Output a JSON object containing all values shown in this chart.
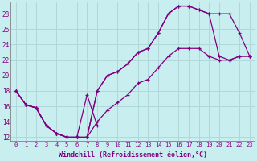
{
  "background_color": "#c8eef0",
  "grid_color": "#b0d8da",
  "line_color": "#800080",
  "marker": "+",
  "xlabel": "Windchill (Refroidissement éolien,°C)",
  "ylim": [
    11.5,
    29.5
  ],
  "xlim": [
    -0.5,
    23.5
  ],
  "yticks": [
    12,
    14,
    16,
    18,
    20,
    22,
    24,
    26,
    28
  ],
  "xticks": [
    0,
    1,
    2,
    3,
    4,
    5,
    6,
    7,
    8,
    9,
    10,
    11,
    12,
    13,
    14,
    15,
    16,
    17,
    18,
    19,
    20,
    21,
    22,
    23
  ],
  "line1_x": [
    0,
    1,
    2,
    3,
    4,
    5,
    6,
    7,
    8,
    9,
    10,
    11,
    12,
    13,
    14,
    15,
    16,
    17,
    18,
    19,
    20,
    21,
    22,
    23
  ],
  "line1_y": [
    18,
    16.2,
    15.8,
    13.5,
    12.5,
    12.0,
    12.0,
    12.0,
    18.0,
    20.0,
    20.5,
    21.5,
    23.0,
    23.5,
    25.5,
    28.0,
    29.0,
    29.0,
    28.5,
    28.0,
    28.0,
    28.0,
    25.5,
    22.5
  ],
  "line2_x": [
    0,
    1,
    2,
    3,
    4,
    5,
    6,
    7,
    8,
    9,
    10,
    11,
    12,
    13,
    14,
    15,
    16,
    17,
    18,
    19,
    20,
    21,
    22,
    23
  ],
  "line2_y": [
    18,
    16.2,
    15.8,
    13.5,
    12.5,
    12.0,
    12.0,
    12.0,
    18.0,
    20.0,
    20.5,
    21.5,
    23.0,
    23.5,
    25.5,
    28.0,
    29.0,
    29.0,
    28.5,
    28.0,
    22.5,
    22.0,
    22.5,
    22.5
  ],
  "line3_x": [
    0,
    1,
    2,
    3,
    4,
    5,
    6,
    7,
    8,
    9,
    10,
    11,
    12,
    13,
    14,
    15,
    16,
    17,
    18,
    19,
    20,
    21,
    22,
    23
  ],
  "line3_y": [
    18,
    16.2,
    15.8,
    13.5,
    12.5,
    12.0,
    12.0,
    12.0,
    14.0,
    15.5,
    16.5,
    17.5,
    19.0,
    19.5,
    21.0,
    22.5,
    23.5,
    23.5,
    23.5,
    22.5,
    22.0,
    22.0,
    22.5,
    22.5
  ],
  "line4_x": [
    0,
    1,
    2,
    3,
    4,
    5,
    6,
    7,
    8
  ],
  "line4_y": [
    18,
    16.2,
    15.8,
    13.5,
    12.5,
    12.0,
    12.0,
    17.5,
    13.5
  ]
}
